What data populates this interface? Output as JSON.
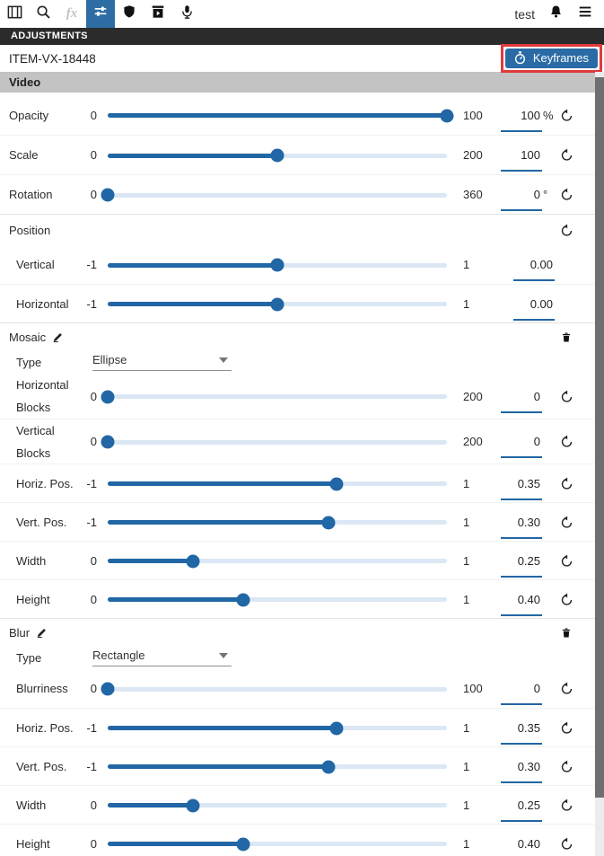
{
  "colors": {
    "accent": "#2a6ba5",
    "annotation_red": "#e13a3c",
    "header_dark": "#2b2b2b",
    "section_gray": "#c3c3c3",
    "slider_fill": "#2166a5",
    "slider_track": "#dbe7f4"
  },
  "toolbar": {
    "user_label": "test",
    "icons": [
      "panel-icon",
      "search-icon",
      "effects-icon",
      "sliders-icon",
      "shield-icon",
      "export-box-icon",
      "microphone-icon",
      "bell-icon",
      "menu-icon"
    ],
    "active_icon": "sliders-icon"
  },
  "panel": {
    "title": "ADJUSTMENTS",
    "item_id": "ITEM-VX-18448",
    "keyframes_button": "Keyframes",
    "video_header": "Video"
  },
  "sections": [
    {
      "name": "video",
      "rows": [
        {
          "label": "Opacity",
          "min": "0",
          "max": "100",
          "value": "100",
          "suffix": "%",
          "reset": true
        },
        {
          "label": "Scale",
          "min": "0",
          "max": "200",
          "value": "100",
          "suffix": "",
          "reset": true
        },
        {
          "label": "Rotation",
          "min": "0",
          "max": "360",
          "value": "0",
          "suffix": "°",
          "reset": true
        }
      ]
    },
    {
      "name": "position",
      "header": {
        "label": "Position",
        "reset": true
      },
      "rows": [
        {
          "label": "Vertical",
          "min": "-1",
          "max": "1",
          "value": "0.00",
          "suffix": "",
          "reset": false
        },
        {
          "label": "Horizontal",
          "min": "-1",
          "max": "1",
          "value": "0.00",
          "suffix": "",
          "reset": false
        }
      ]
    },
    {
      "name": "mosaic",
      "header": {
        "label": "Mosaic",
        "editable": true,
        "deletable": true
      },
      "dropdown": {
        "label": "Type",
        "value": "Ellipse"
      },
      "rows": [
        {
          "label": "Horizontal Blocks",
          "min": "0",
          "max": "200",
          "value": "0",
          "suffix": "",
          "reset": true
        },
        {
          "label": "Vertical Blocks",
          "min": "0",
          "max": "200",
          "value": "0",
          "suffix": "",
          "reset": true
        },
        {
          "label": "Horiz. Pos.",
          "min": "-1",
          "max": "1",
          "value": "0.35",
          "suffix": "",
          "reset": true
        },
        {
          "label": "Vert. Pos.",
          "min": "-1",
          "max": "1",
          "value": "0.30",
          "suffix": "",
          "reset": true
        },
        {
          "label": "Width",
          "min": "0",
          "max": "1",
          "value": "0.25",
          "suffix": "",
          "reset": true
        },
        {
          "label": "Height",
          "min": "0",
          "max": "1",
          "value": "0.40",
          "suffix": "",
          "reset": true
        }
      ]
    },
    {
      "name": "blur",
      "header": {
        "label": "Blur",
        "editable": true,
        "deletable": true
      },
      "dropdown": {
        "label": "Type",
        "value": "Rectangle"
      },
      "rows": [
        {
          "label": "Blurriness",
          "min": "0",
          "max": "100",
          "value": "0",
          "suffix": "",
          "reset": true
        },
        {
          "label": "Horiz. Pos.",
          "min": "-1",
          "max": "1",
          "value": "0.35",
          "suffix": "",
          "reset": true
        },
        {
          "label": "Vert. Pos.",
          "min": "-1",
          "max": "1",
          "value": "0.30",
          "suffix": "",
          "reset": true
        },
        {
          "label": "Width",
          "min": "0",
          "max": "1",
          "value": "0.25",
          "suffix": "",
          "reset": true
        },
        {
          "label": "Height",
          "min": "0",
          "max": "1",
          "value": "0.40",
          "suffix": "",
          "reset": true
        }
      ]
    }
  ]
}
